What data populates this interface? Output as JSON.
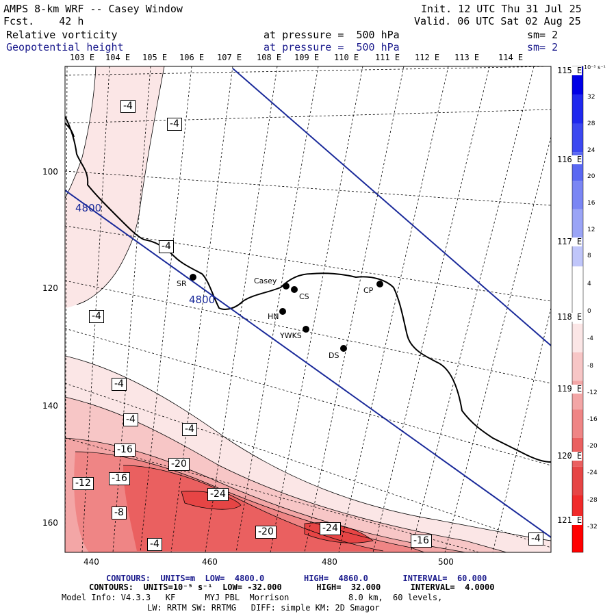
{
  "header": {
    "title": "AMPS 8-km WRF -- Casey Window",
    "fcst": "Fcst.    42 h",
    "init": "Init. 12 UTC Thu 31 Jul 25",
    "valid": "Valid. 06 UTC Sat 02 Aug 25",
    "field1_name": "Relative vorticity",
    "field1_level": "at pressure =  500 hPa",
    "field1_smooth": "sm= 2",
    "field2_name": "Geopotential height",
    "field2_level": "at pressure =  500 hPa",
    "field2_smooth": "sm= 2"
  },
  "map": {
    "lon_labels_top": [
      "103 E",
      "104 E",
      "105 E",
      "106 E",
      "107 E",
      "108 E",
      "109 E",
      "110 E",
      "111 E",
      "112 E",
      "113 E",
      "114 E"
    ],
    "lat_labels_right": [
      "115 E",
      "116 E",
      "117 E",
      "118 E",
      "119 E",
      "120 E",
      "121 E"
    ],
    "y_ticks": [
      "100",
      "120",
      "140",
      "160"
    ],
    "x_ticks": [
      "440",
      "460",
      "480",
      "500"
    ],
    "height_contour_labels": [
      "4800",
      "4800"
    ],
    "vorticity_labels": [
      "-4",
      "-4",
      "-4",
      "-4",
      "-4",
      "-4",
      "-4",
      "-16",
      "-20",
      "-12",
      "-16",
      "-24",
      "-8",
      "-4",
      "-20",
      "-24",
      "-16",
      "-4"
    ],
    "stations": [
      "SR",
      "Casey",
      "CS",
      "HN",
      "YWKS",
      "DS",
      "CP"
    ],
    "colors": {
      "height_contour": "#1a2a9a",
      "coastline": "#000000",
      "neg_shading": [
        "#fbe6e6",
        "#f7c6c6",
        "#f3a6a6",
        "#ef8585",
        "#ea6060",
        "#e64545"
      ]
    }
  },
  "colorbar": {
    "unit": "10⁻⁵ s⁻¹",
    "labels": [
      "32",
      "28",
      "24",
      "20",
      "16",
      "12",
      "8",
      "4",
      "0",
      "-4",
      "-8",
      "-12",
      "-16",
      "-20",
      "-24",
      "-28",
      "-32"
    ],
    "colors": [
      "#0000e6",
      "#1f28ee",
      "#3c48f0",
      "#5a68f2",
      "#7a86f4",
      "#9aa4f6",
      "#c0c6fa",
      "#ffffff",
      "#ffffff",
      "#fbe6e6",
      "#f7c6c6",
      "#f3a6a6",
      "#ef8585",
      "#ea6060",
      "#e64545",
      "#f02a2a",
      "#ff0000"
    ]
  },
  "footer": {
    "contours1": "CONTOURS:  UNITS=m  LOW=  4800.0        HIGH=  4860.0       INTERVAL=  60.000",
    "contours2": "CONTOURS:  UNITS=10⁻⁵ s⁻¹  LOW= -32.000       HIGH=  32.000      INTERVAL=  4.0000",
    "model1": "Model Info: V4.3.3   KF      MYJ PBL  Morrison            8.0 km,  60 levels,",
    "model2": "LW: RRTM SW: RRTMG   DIFF: simple KM: 2D Smagor"
  }
}
